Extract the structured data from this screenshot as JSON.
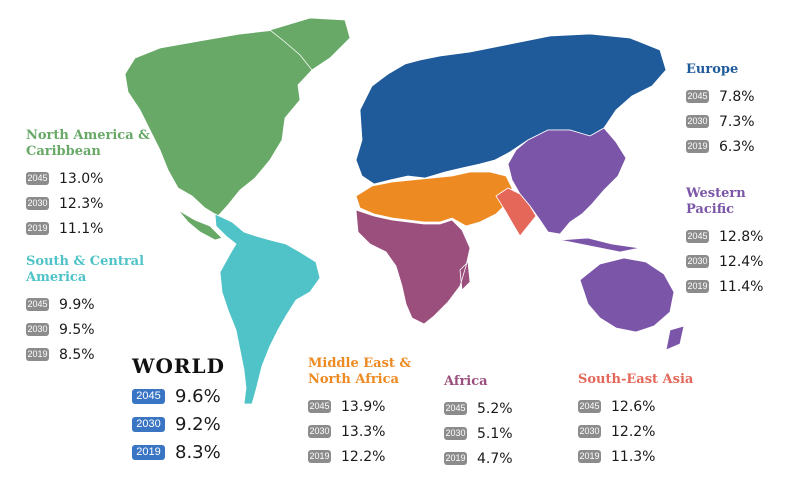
{
  "colors": {
    "europe": "#1f5a9a",
    "western_pacific": "#7b55a8",
    "north_america": "#68a968",
    "south_america": "#4fc3c7",
    "mena": "#ee8a22",
    "africa": "#9b4f7d",
    "south_east_asia": "#e4675a",
    "badge": "#8c8c8c",
    "world_badge": "#3a75c4"
  },
  "regions": {
    "europe": {
      "title": "Europe",
      "rows": [
        {
          "year": "2045",
          "value": "7.8%"
        },
        {
          "year": "2030",
          "value": "7.3%"
        },
        {
          "year": "2019",
          "value": "6.3%"
        }
      ]
    },
    "western_pacific": {
      "title_line1": "Western",
      "title_line2": "Pacific",
      "rows": [
        {
          "year": "2045",
          "value": "12.8%"
        },
        {
          "year": "2030",
          "value": "12.4%"
        },
        {
          "year": "2019",
          "value": "11.4%"
        }
      ]
    },
    "north_america": {
      "title_line1": "North America &",
      "title_line2": "Caribbean",
      "rows": [
        {
          "year": "2045",
          "value": "13.0%"
        },
        {
          "year": "2030",
          "value": "12.3%"
        },
        {
          "year": "2019",
          "value": "11.1%"
        }
      ]
    },
    "south_america": {
      "title_line1": "South & Central",
      "title_line2": "America",
      "rows": [
        {
          "year": "2045",
          "value": "9.9%"
        },
        {
          "year": "2030",
          "value": "9.5%"
        },
        {
          "year": "2019",
          "value": "8.5%"
        }
      ]
    },
    "world": {
      "title": "WORLD",
      "rows": [
        {
          "year": "2045",
          "value": "9.6%"
        },
        {
          "year": "2030",
          "value": "9.2%"
        },
        {
          "year": "2019",
          "value": "8.3%"
        }
      ]
    },
    "mena": {
      "title_line1": "Middle East &",
      "title_line2": "North Africa",
      "rows": [
        {
          "year": "2045",
          "value": "13.9%"
        },
        {
          "year": "2030",
          "value": "13.3%"
        },
        {
          "year": "2019",
          "value": "12.2%"
        }
      ]
    },
    "africa": {
      "title": "Africa",
      "rows": [
        {
          "year": "2045",
          "value": "5.2%"
        },
        {
          "year": "2030",
          "value": "5.1%"
        },
        {
          "year": "2019",
          "value": "4.7%"
        }
      ]
    },
    "south_east_asia": {
      "title": "South-East Asia",
      "rows": [
        {
          "year": "2045",
          "value": "12.6%"
        },
        {
          "year": "2030",
          "value": "12.2%"
        },
        {
          "year": "2019",
          "value": "11.3%"
        }
      ]
    }
  }
}
